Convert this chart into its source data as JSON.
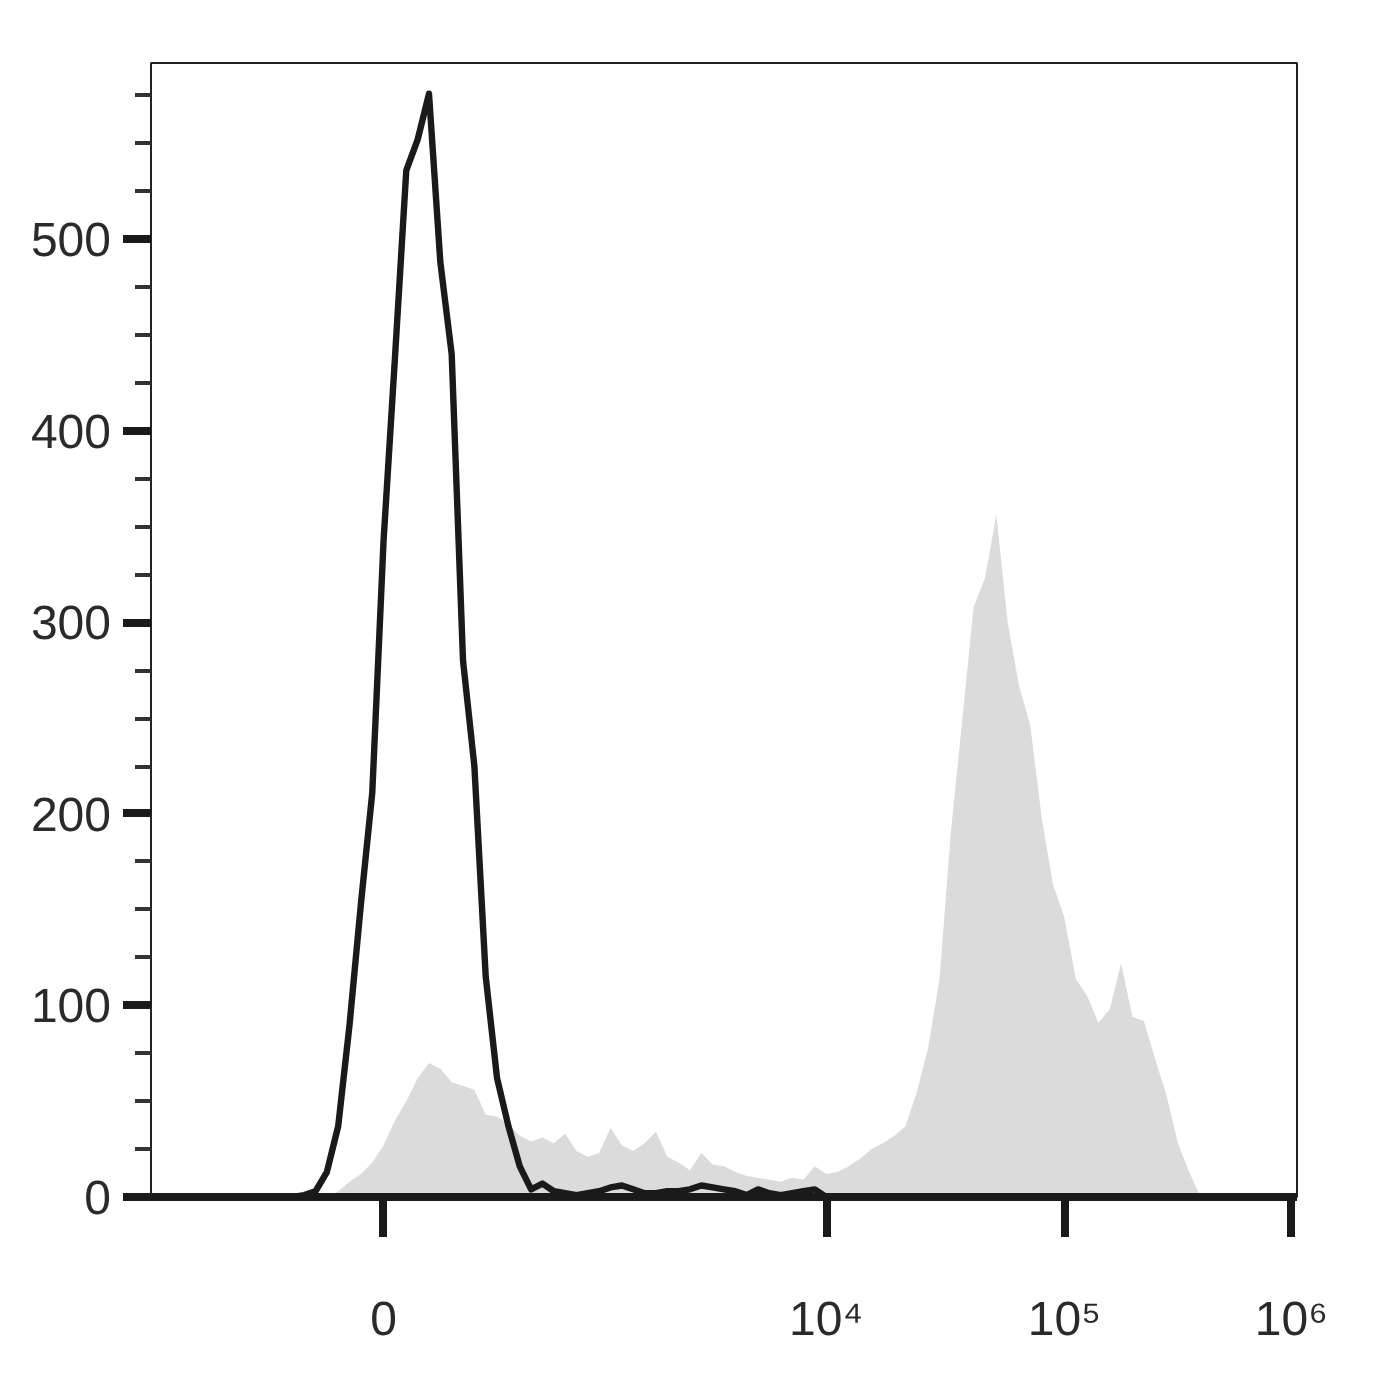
{
  "chart_data": {
    "type": "area",
    "categories": [
      null,
      null,
      null,
      null,
      null,
      null,
      null,
      null,
      null,
      null,
      null,
      null,
      null,
      null,
      null,
      null,
      null,
      null,
      null,
      null,
      "0",
      null,
      null,
      null,
      null,
      null,
      null,
      null,
      null,
      null,
      null,
      null,
      null,
      null,
      null,
      null,
      null,
      null,
      null,
      null,
      null,
      null,
      null,
      null,
      null,
      null,
      null,
      null,
      null,
      null,
      null,
      null,
      null,
      null,
      null,
      null,
      null,
      null,
      null,
      "10⁴",
      null,
      null,
      null,
      null,
      null,
      null,
      null,
      null,
      null,
      null,
      null,
      null,
      null,
      null,
      null,
      null,
      null,
      null,
      null,
      null,
      "10⁵",
      null,
      null,
      null,
      null,
      null,
      null,
      null,
      null,
      null,
      null,
      null,
      null,
      null,
      null,
      null,
      null,
      null,
      null,
      null,
      "10⁶"
    ],
    "ylim": [
      0,
      592
    ],
    "yticks": [
      0,
      {
        "value": 25,
        "label": null
      },
      {
        "value": 50,
        "label": null
      },
      {
        "value": 75,
        "label": null
      },
      100,
      {
        "value": 125,
        "label": null
      },
      {
        "value": 150,
        "label": null
      },
      {
        "value": 175,
        "label": null
      },
      200,
      {
        "value": 225,
        "label": null
      },
      {
        "value": 250,
        "label": null
      },
      {
        "value": 275,
        "label": null
      },
      300,
      {
        "value": 325,
        "label": null
      },
      {
        "value": 350,
        "label": null
      },
      {
        "value": 375,
        "label": null
      },
      400,
      {
        "value": 425,
        "label": null
      },
      {
        "value": 450,
        "label": null
      },
      {
        "value": 475,
        "label": null
      },
      500,
      {
        "value": 525,
        "label": null
      },
      {
        "value": 550,
        "label": null
      },
      {
        "value": 575,
        "label": null
      }
    ],
    "series": [
      {
        "color": "#c8c8c8",
        "values": [
          0,
          0,
          0,
          0,
          0,
          0,
          0,
          0,
          0,
          0,
          0,
          0,
          0,
          0,
          0,
          0,
          3,
          8,
          12,
          18,
          27,
          40,
          50,
          62,
          70,
          67,
          60,
          58,
          56,
          43,
          42,
          38,
          32,
          29,
          31,
          28,
          33,
          24,
          21,
          23,
          36,
          27,
          24,
          28,
          34,
          21,
          18,
          14,
          23,
          17,
          16,
          13,
          11,
          10,
          9,
          8,
          10,
          9,
          16,
          12,
          13,
          16,
          20,
          25,
          28,
          32,
          37,
          55,
          78,
          114,
          191,
          249,
          308,
          323,
          356,
          300,
          267,
          246,
          198,
          163,
          146,
          114,
          105,
          91,
          98,
          122,
          94,
          92,
          72,
          53,
          28,
          13,
          0,
          0,
          0,
          0,
          0,
          0,
          0,
          0,
          0
        ]
      },
      {
        "type": "line",
        "color": "#1a1a1a",
        "values": [
          0,
          0,
          0,
          0,
          0,
          0,
          0,
          0,
          0,
          0,
          0,
          0,
          0,
          1,
          3,
          13,
          37,
          90,
          153,
          211,
          343,
          438,
          536,
          552,
          576,
          488,
          440,
          280,
          225,
          115,
          62,
          37,
          16,
          4,
          7,
          3,
          2,
          1,
          2,
          3,
          5,
          6,
          4,
          2,
          2,
          3,
          3,
          4,
          6,
          5,
          4,
          3,
          1,
          4,
          2,
          1,
          2,
          3,
          4,
          0,
          0,
          0,
          0,
          0,
          0,
          0,
          0,
          0,
          0,
          0,
          0,
          0,
          0,
          0,
          0,
          0,
          0,
          0,
          0,
          0,
          0,
          0,
          0,
          0,
          0,
          0,
          0,
          0,
          0,
          0,
          0,
          0,
          0,
          0,
          0,
          0,
          0,
          0,
          0,
          0,
          0
        ]
      }
    ]
  }
}
